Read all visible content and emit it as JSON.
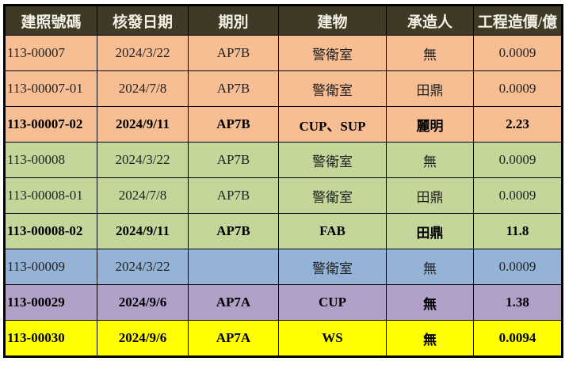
{
  "headers": [
    "建照號碼",
    "核發日期",
    "期別",
    "建物",
    "承造人",
    "工程造價/億"
  ],
  "colors": {
    "header": "#3f3a26",
    "peach": "#f8be93",
    "green": "#c4d79b",
    "blue": "#95b3d7",
    "purple": "#b1a0c7",
    "yellow": "#ffff00"
  },
  "rows": [
    {
      "cells": [
        "113-00007",
        "2024/3/22",
        "AP7B",
        "警衛室",
        "無",
        "0.0009"
      ],
      "color": "#f8be93",
      "bold": false
    },
    {
      "cells": [
        "113-00007-01",
        "2024/7/8",
        "AP7B",
        "警衛室",
        "田鼎",
        "0.0009"
      ],
      "color": "#f8be93",
      "bold": false
    },
    {
      "cells": [
        "113-00007-02",
        "2024/9/11",
        "AP7B",
        "CUP、SUP",
        "麗明",
        "2.23"
      ],
      "color": "#f8be93",
      "bold": true
    },
    {
      "cells": [
        "113-00008",
        "2024/3/22",
        "AP7B",
        "警衛室",
        "無",
        "0.0009"
      ],
      "color": "#c4d79b",
      "bold": false
    },
    {
      "cells": [
        "113-00008-01",
        "2024/7/8",
        "AP7B",
        "警衛室",
        "田鼎",
        "0.0009"
      ],
      "color": "#c4d79b",
      "bold": false
    },
    {
      "cells": [
        "113-00008-02",
        "2024/9/11",
        "AP7B",
        "FAB",
        "田鼎",
        "11.8"
      ],
      "color": "#c4d79b",
      "bold": true
    },
    {
      "cells": [
        "113-00009",
        "2024/3/22",
        "",
        "警衛室",
        "無",
        "0.0009"
      ],
      "color": "#95b3d7",
      "bold": false
    },
    {
      "cells": [
        "113-00029",
        "2024/9/6",
        "AP7A",
        "CUP",
        "無",
        "1.38"
      ],
      "color": "#b1a0c7",
      "bold": true
    },
    {
      "cells": [
        "113-00030",
        "2024/9/6",
        "AP7A",
        "WS",
        "無",
        "0.0094"
      ],
      "color": "#ffff00",
      "bold": true
    }
  ]
}
